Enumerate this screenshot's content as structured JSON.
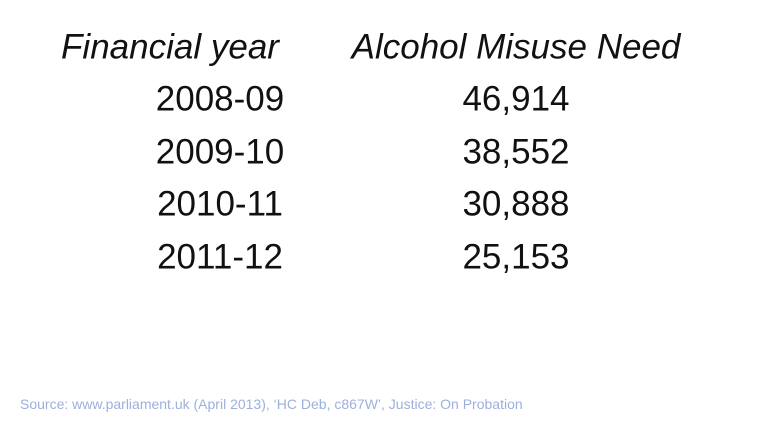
{
  "table": {
    "header": [
      "Financial year",
      "Alcohol Misuse Need"
    ],
    "rows": [
      [
        "2008-09",
        "46,914"
      ],
      [
        "2009-10",
        "38,552"
      ],
      [
        "2010-11",
        "30,888"
      ],
      [
        "2011-12",
        "25,153"
      ]
    ]
  },
  "source": "Source: www.parliament.uk (April 2013), ‘HC Deb, c867W’, Justice: On Probation"
}
